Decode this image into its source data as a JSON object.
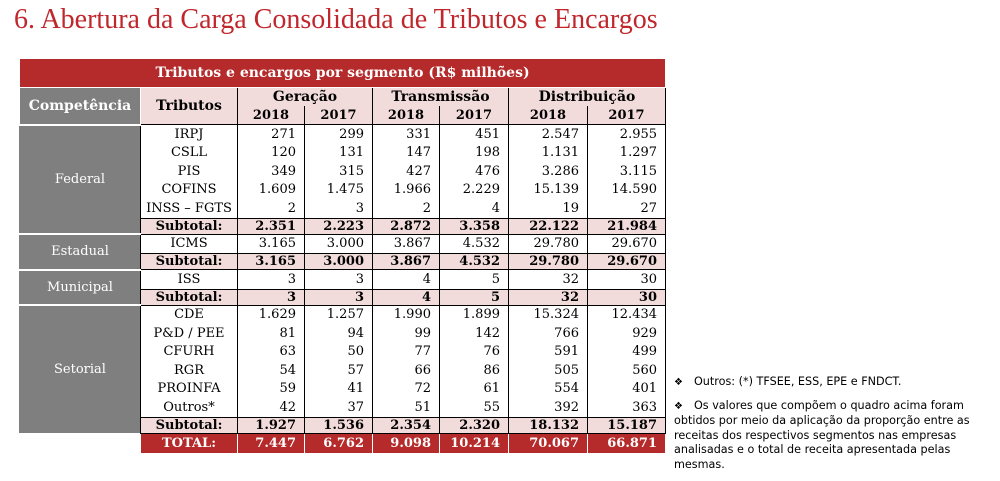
{
  "title": "6. Abertura da Carga Consolidada de Tributos e Encargos",
  "table": {
    "caption": "Tributos e encargos por segmento (R$ milhões)",
    "header_competencia": "Competência",
    "header_tributos": "Tributos",
    "segments": [
      "Geração",
      "Transmissão",
      "Distribuição"
    ],
    "years": [
      "2018",
      "2017",
      "2018",
      "2017",
      "2018",
      "2017"
    ],
    "groups": [
      {
        "name": "Federal",
        "rows": [
          {
            "label": "IRPJ",
            "values": [
              "271",
              "299",
              "331",
              "451",
              "2.547",
              "2.955"
            ]
          },
          {
            "label": "CSLL",
            "values": [
              "120",
              "131",
              "147",
              "198",
              "1.131",
              "1.297"
            ]
          },
          {
            "label": "PIS",
            "values": [
              "349",
              "315",
              "427",
              "476",
              "3.286",
              "3.115"
            ]
          },
          {
            "label": "COFINS",
            "values": [
              "1.609",
              "1.475",
              "1.966",
              "2.229",
              "15.139",
              "14.590"
            ]
          },
          {
            "label": "INSS – FGTS",
            "values": [
              "2",
              "3",
              "2",
              "4",
              "19",
              "27"
            ]
          }
        ],
        "subtotal_label": "Subtotal:",
        "subtotal": [
          "2.351",
          "2.223",
          "2.872",
          "3.358",
          "22.122",
          "21.984"
        ]
      },
      {
        "name": "Estadual",
        "rows": [
          {
            "label": "ICMS",
            "values": [
              "3.165",
              "3.000",
              "3.867",
              "4.532",
              "29.780",
              "29.670"
            ]
          }
        ],
        "subtotal_label": "Subtotal:",
        "subtotal": [
          "3.165",
          "3.000",
          "3.867",
          "4.532",
          "29.780",
          "29.670"
        ]
      },
      {
        "name": "Municipal",
        "rows": [
          {
            "label": "ISS",
            "values": [
              "3",
              "3",
              "4",
              "5",
              "32",
              "30"
            ]
          }
        ],
        "subtotal_label": "Subtotal:",
        "subtotal": [
          "3",
          "3",
          "4",
          "5",
          "32",
          "30"
        ]
      },
      {
        "name": "Setorial",
        "rows": [
          {
            "label": "CDE",
            "values": [
              "1.629",
              "1.257",
              "1.990",
              "1.899",
              "15.324",
              "12.434"
            ]
          },
          {
            "label": "P&D / PEE",
            "values": [
              "81",
              "94",
              "99",
              "142",
              "766",
              "929"
            ]
          },
          {
            "label": "CFURH",
            "values": [
              "63",
              "50",
              "77",
              "76",
              "591",
              "499"
            ]
          },
          {
            "label": "RGR",
            "values": [
              "54",
              "57",
              "66",
              "86",
              "505",
              "560"
            ]
          },
          {
            "label": "PROINFA",
            "values": [
              "59",
              "41",
              "72",
              "61",
              "554",
              "401"
            ]
          },
          {
            "label": "Outros*",
            "values": [
              "42",
              "37",
              "51",
              "55",
              "392",
              "363"
            ]
          }
        ],
        "subtotal_label": "Subtotal:",
        "subtotal": [
          "1.927",
          "1.536",
          "2.354",
          "2.320",
          "18.132",
          "15.187"
        ]
      }
    ],
    "total_label": "TOTAL:",
    "total": [
      "7.447",
      "6.762",
      "9.098",
      "10.214",
      "70.067",
      "66.871"
    ]
  },
  "notes": [
    "Outros: (*) TFSEE, ESS, EPE e FNDCT.",
    "Os valores que compõem o quadro acima foram obtidos por meio da aplicação da proporção entre as receitas dos respectivos segmentos nas empresas analisadas e o total de receita apresentada pelas mesmas."
  ],
  "bullet_symbol": "❖",
  "colors": {
    "title": "#c0272d",
    "header_red": "#b52a2a",
    "header_gray": "#7f7f7f",
    "pink": "#f2dcdb"
  }
}
